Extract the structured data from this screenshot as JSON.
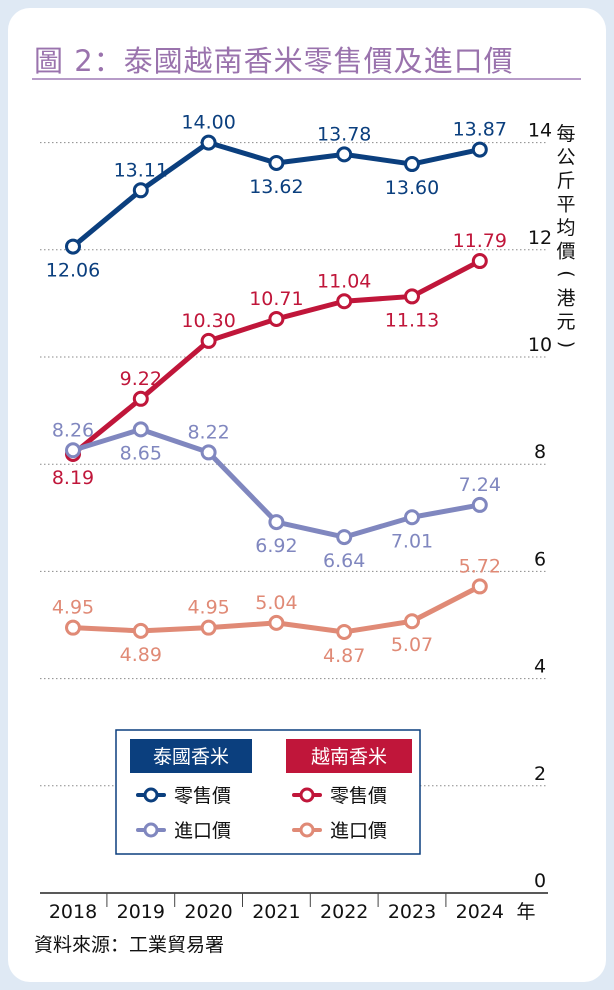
{
  "title": "圖 2：泰國越南香米零售價及進口價",
  "source": "資料來源：工業貿易署",
  "colors": {
    "thai_retail": "#0b3f7e",
    "vn_retail": "#c0163a",
    "thai_import": "#8087bf",
    "vn_import": "#e08a76",
    "title": "#9a73ad",
    "grid": "#8a8a8a"
  },
  "legend": {
    "thai_header": "泰國香米",
    "vn_header": "越南香米",
    "retail_label": "零售價",
    "import_label": "進口價"
  },
  "chart_data": {
    "type": "line",
    "x": [
      "2018",
      "2019",
      "2020",
      "2021",
      "2022",
      "2023",
      "2024"
    ],
    "x_unit": "年",
    "ylabel": "每公斤平均價（港元）",
    "ylim": [
      0,
      14
    ],
    "yticks": [
      0,
      2,
      4,
      6,
      8,
      10,
      12,
      14
    ],
    "grid": "dotted horizontal",
    "legend_position": "bottom-center",
    "series": [
      {
        "name": "泰國香米 零售價",
        "key": "thai_retail",
        "values": [
          12.06,
          13.11,
          14.0,
          13.62,
          13.78,
          13.6,
          13.87
        ],
        "labels": [
          "12.06",
          "13.11",
          "14.00",
          "13.62",
          "13.78",
          "13.60",
          "13.87"
        ],
        "label_pos": [
          "below",
          "above",
          "above",
          "below",
          "above",
          "below",
          "above"
        ]
      },
      {
        "name": "越南香米 零售價",
        "key": "vn_retail",
        "values": [
          8.19,
          9.22,
          10.3,
          10.71,
          11.04,
          11.13,
          11.79
        ],
        "labels": [
          "8.19",
          "9.22",
          "10.30",
          "10.71",
          "11.04",
          "11.13",
          "11.79"
        ],
        "label_pos": [
          "below",
          "above",
          "above",
          "above",
          "above",
          "below",
          "above"
        ]
      },
      {
        "name": "泰國香米 進口價",
        "key": "thai_import",
        "values": [
          8.26,
          8.65,
          8.22,
          6.92,
          6.64,
          7.01,
          7.24
        ],
        "labels": [
          "8.26",
          "8.65",
          "8.22",
          "6.92",
          "6.64",
          "7.01",
          "7.24"
        ],
        "label_pos": [
          "above",
          "below",
          "above",
          "below",
          "below",
          "below",
          "above"
        ]
      },
      {
        "name": "越南香米 進口價",
        "key": "vn_import",
        "values": [
          4.95,
          4.89,
          4.95,
          5.04,
          4.87,
          5.07,
          5.72
        ],
        "labels": [
          "4.95",
          "4.89",
          "4.95",
          "5.04",
          "4.87",
          "5.07",
          "5.72"
        ],
        "label_pos": [
          "above",
          "below",
          "above",
          "above",
          "below",
          "below",
          "above"
        ]
      }
    ]
  }
}
